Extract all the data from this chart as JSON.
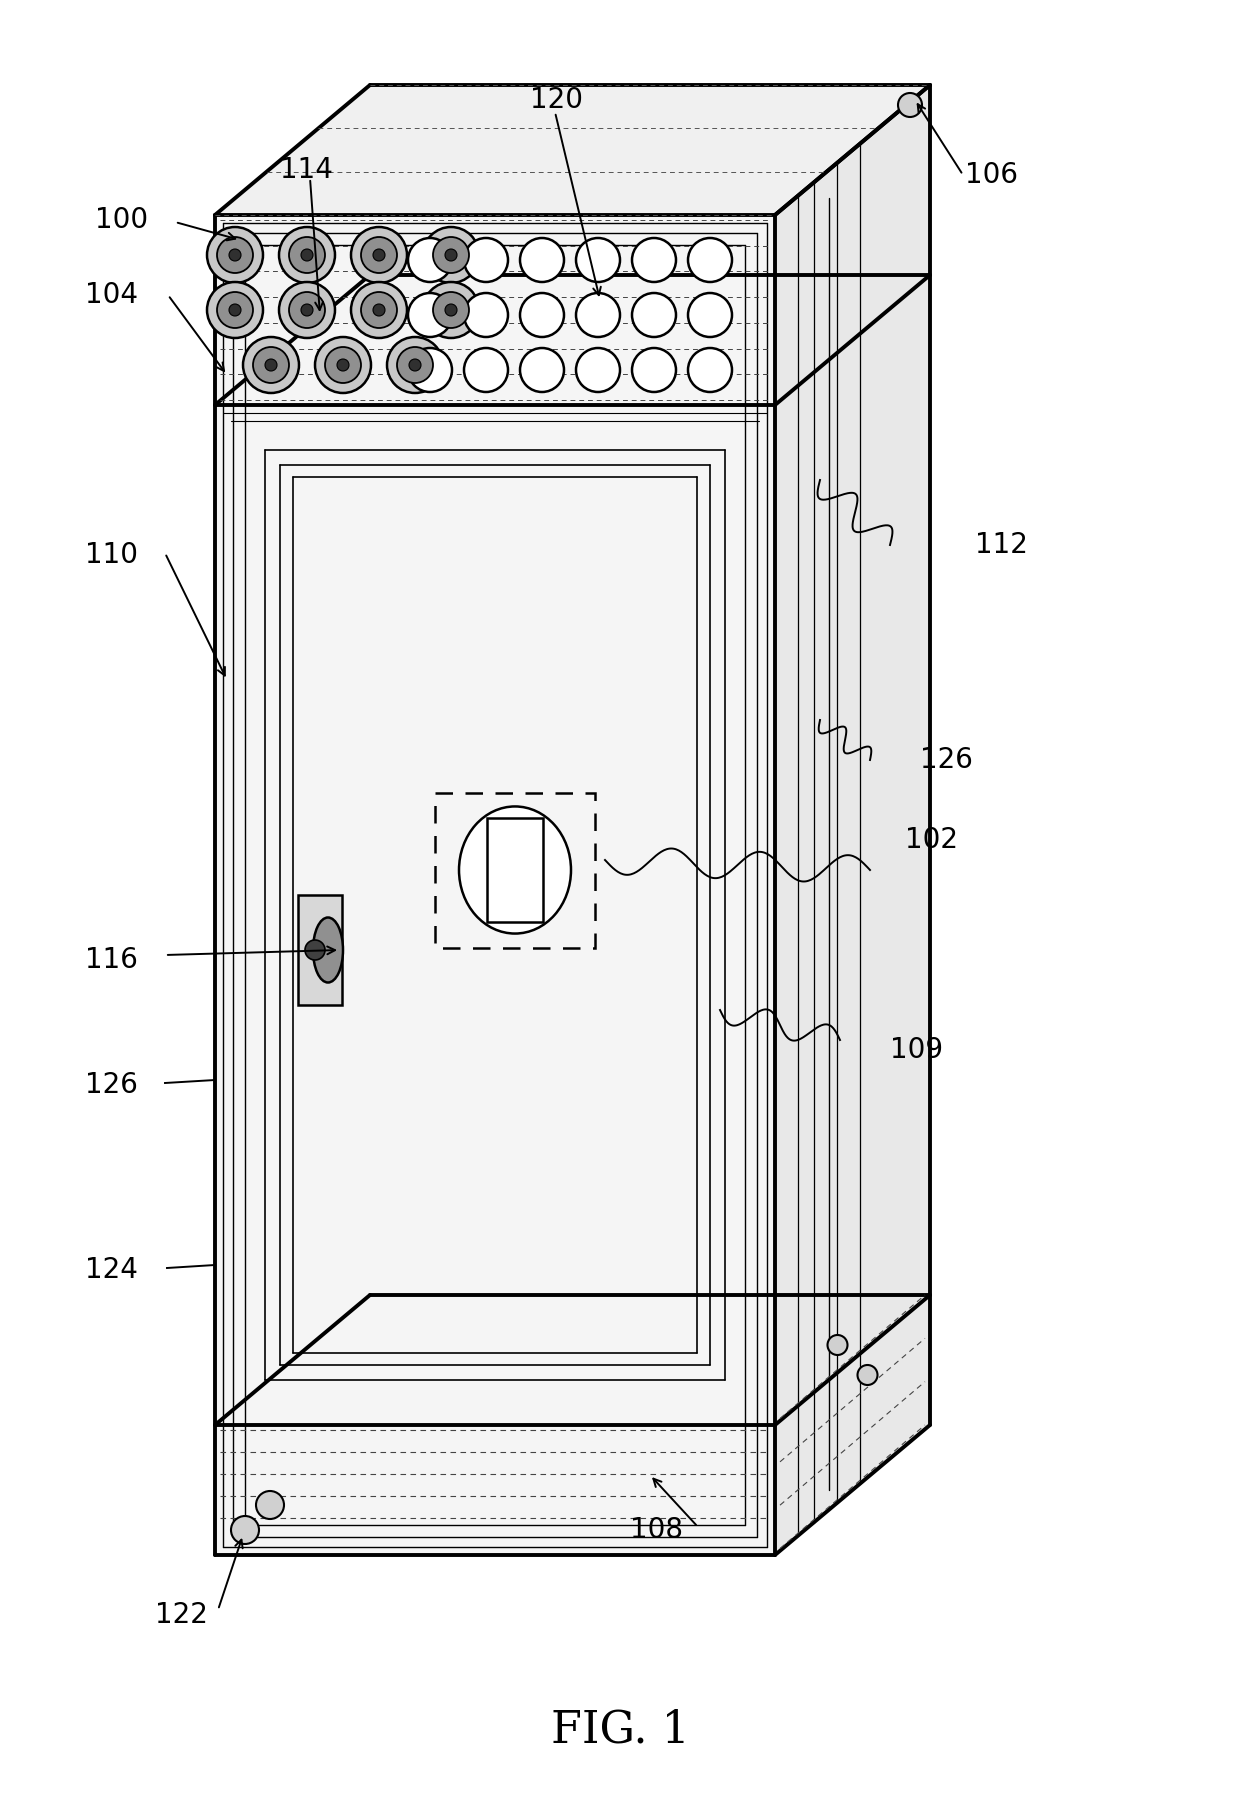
{
  "bg_color": "#ffffff",
  "line_color": "#000000",
  "title": "FIG. 1",
  "title_fontsize": 32,
  "label_fontsize": 20
}
